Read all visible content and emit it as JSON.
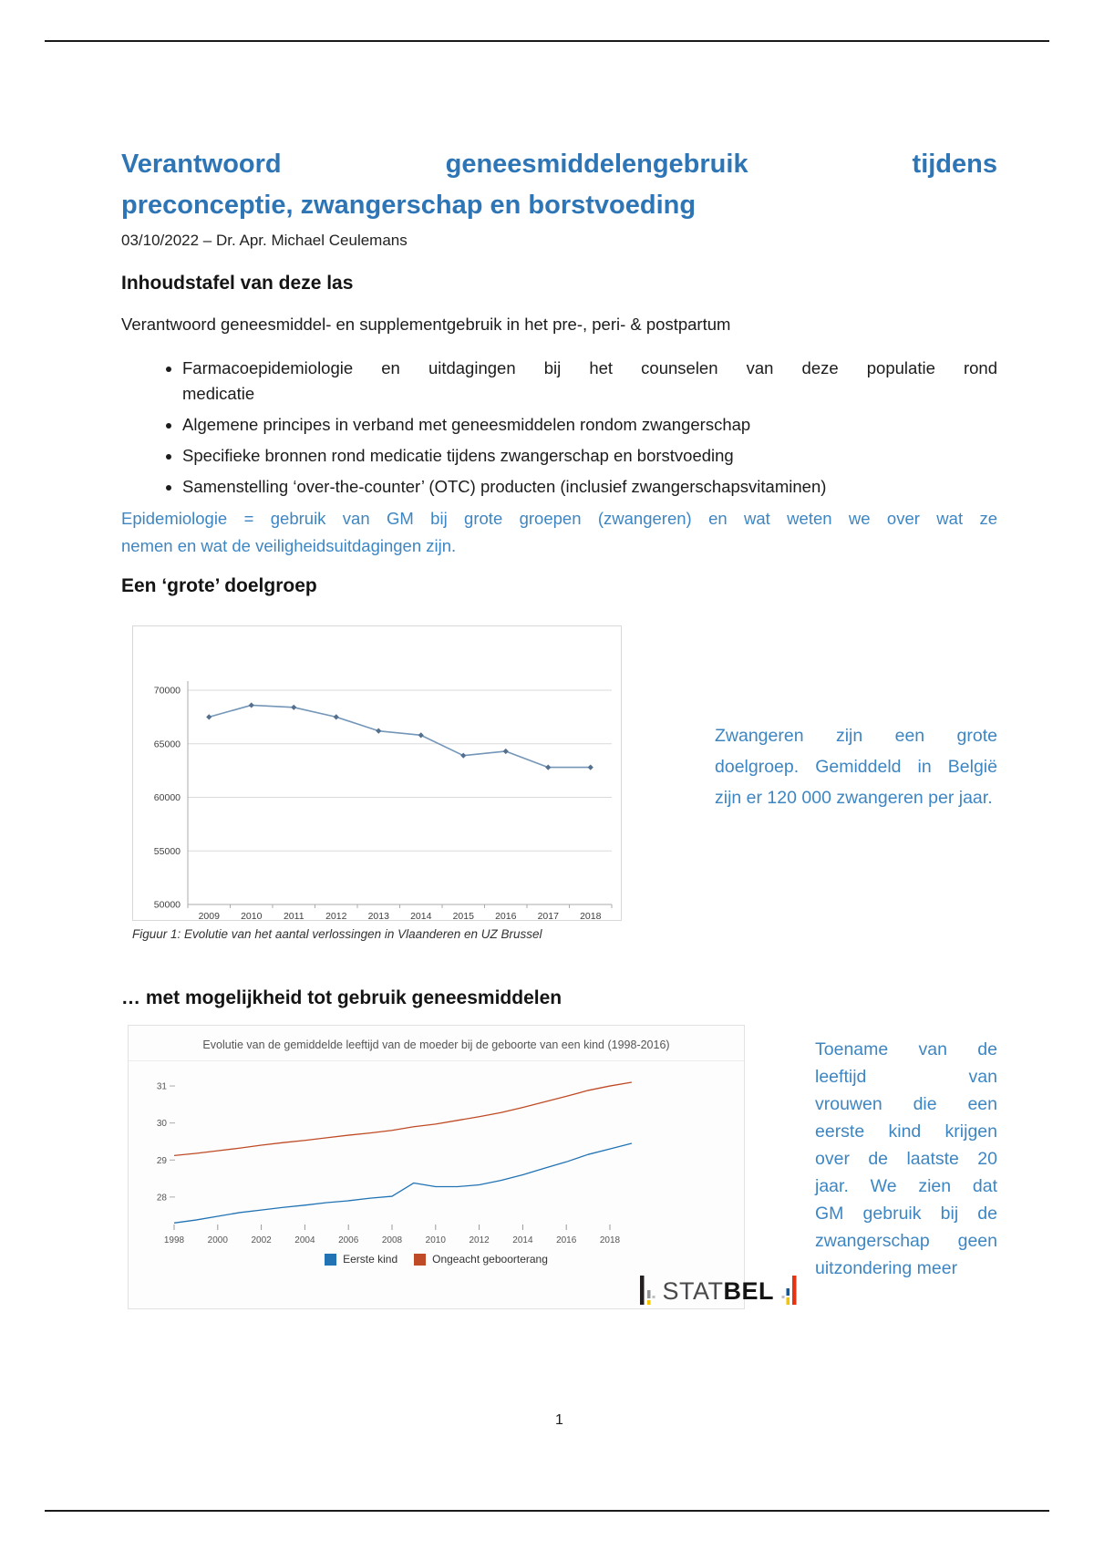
{
  "page": {
    "number": "1"
  },
  "header": {
    "title_lines": [
      "Verantwoord geneesmiddelengebruik tijdens",
      "preconceptie, zwangerschap en borstvoeding"
    ],
    "byline": "03/10/2022 – Dr. Apr. Michael Ceulemans"
  },
  "toc": {
    "heading": "Inhoudstafel van deze las",
    "intro": "Verantwoord geneesmiddel- en supplementgebruik in het pre-, peri- & postpartum",
    "items": [
      {
        "lines": [
          "Farmacoepidemiologie en uitdagingen bij het counselen van deze populatie rond",
          "medicatie"
        ]
      },
      {
        "lines": [
          "Algemene principes in verband met geneesmiddelen rondom zwangerschap"
        ]
      },
      {
        "lines": [
          "Specifieke bronnen rond medicatie tijdens zwangerschap en borstvoeding"
        ]
      },
      {
        "lines": [
          "Samenstelling ‘over-the-counter’ (OTC) producten (inclusief zwangerschapsvitaminen)"
        ]
      }
    ]
  },
  "epidemiology_note": {
    "lines": [
      "Epidemiologie = gebruik van GM bij grote groepen (zwangeren) en wat weten we over wat ze",
      "nemen en wat de veiligheidsuitdagingen zijn."
    ]
  },
  "section1": {
    "heading": "Een ‘grote’ doelgroep",
    "figure_caption": "Figuur 1: Evolutie van het aantal verlossingen in Vlaanderen en UZ Brussel",
    "side_note": {
      "lines": [
        "Zwangeren zijn een grote",
        "doelgroep. Gemiddeld in België",
        "zijn er 120 000 zwangeren per jaar."
      ]
    }
  },
  "section2": {
    "heading": "… met mogelijkheid tot gebruik geneesmiddelen",
    "side_note": {
      "lines": [
        "Toename van de",
        "leeftijd van",
        "vrouwen die een",
        "eerste kind krijgen",
        "over de laatste 20",
        "jaar. We zien dat",
        "GM gebruik bij de",
        "zwangerschap geen",
        "uitzondering meer"
      ]
    },
    "statbel": {
      "stat": "STAT",
      "bel": "BEL"
    }
  },
  "colors": {
    "title_blue": "#2e75b6",
    "note_blue": "#3e86c2",
    "chart1_line": "#7496b8",
    "chart1_marker": "#54708e",
    "eerste_kind_blue": "#2173b4",
    "geboorterang_red": "#bf4b26",
    "statbel_black": "#231f20",
    "statbel_gray": "#939598",
    "statbel_yellow": "#f6c500",
    "statbel_red": "#e63312",
    "statbel_blue": "#0f5a9c"
  },
  "chart_data": [
    {
      "type": "line",
      "title": "",
      "caption": "Figuur 1: Evolutie van het aantal verlossingen in Vlaanderen en UZ Brussel",
      "x": [
        2009,
        2010,
        2011,
        2012,
        2013,
        2014,
        2015,
        2016,
        2017,
        2018
      ],
      "series": [
        {
          "name": "Aantal verlossingen",
          "color": "#7496b8",
          "marker_color": "#54708e",
          "values": [
            67500,
            68600,
            68400,
            67500,
            66200,
            65800,
            63900,
            64300,
            62800,
            62800
          ]
        }
      ],
      "ylim": [
        50000,
        70000
      ],
      "yticks": [
        50000,
        55000,
        60000,
        65000,
        70000
      ],
      "grid": true,
      "legend": false
    },
    {
      "type": "line",
      "title": "Evolutie van de gemiddelde leeftijd van de moeder bij de geboorte van een kind (1998-2016)",
      "x": [
        1998,
        1999,
        2000,
        2001,
        2002,
        2003,
        2004,
        2005,
        2006,
        2007,
        2008,
        2009,
        2010,
        2011,
        2012,
        2013,
        2014,
        2015,
        2016,
        2017,
        2018,
        2019
      ],
      "xticks": [
        1998,
        2000,
        2002,
        2004,
        2006,
        2008,
        2010,
        2012,
        2014,
        2016,
        2018
      ],
      "series": [
        {
          "name": "Eerste kind",
          "color": "#2173b4",
          "values": [
            27.3,
            27.38,
            27.48,
            27.58,
            27.65,
            27.72,
            27.78,
            27.85,
            27.9,
            27.97,
            28.02,
            28.38,
            28.28,
            28.28,
            28.33,
            28.45,
            28.6,
            28.78,
            28.95,
            29.15,
            29.3,
            29.45
          ]
        },
        {
          "name": "Ongeacht geboorterang",
          "color": "#bf4b26",
          "values": [
            29.12,
            29.18,
            29.25,
            29.32,
            29.4,
            29.47,
            29.53,
            29.6,
            29.67,
            29.73,
            29.8,
            29.9,
            29.97,
            30.07,
            30.17,
            30.28,
            30.42,
            30.57,
            30.72,
            30.88,
            31.0,
            31.1
          ]
        }
      ],
      "ylim": [
        27.16,
        31.42
      ],
      "yticks": [
        28,
        29,
        30,
        31
      ],
      "grid": false,
      "legend_position": "bottom"
    }
  ]
}
